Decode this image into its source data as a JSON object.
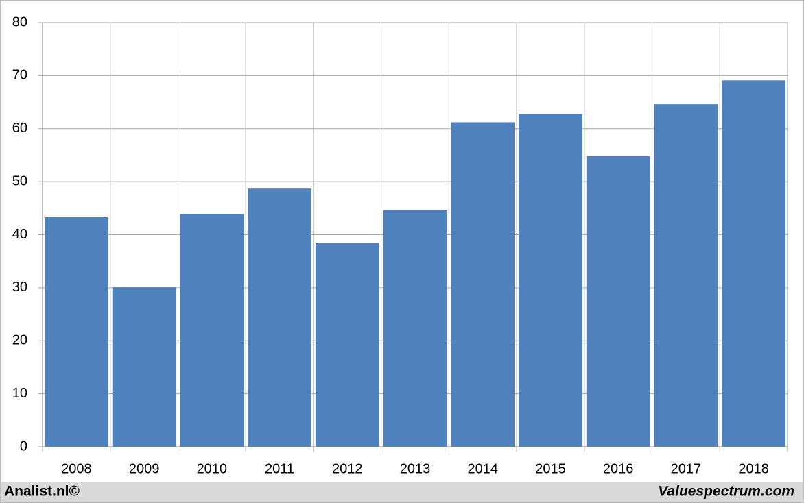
{
  "chart_data": {
    "type": "bar",
    "categories": [
      "2008",
      "2009",
      "2010",
      "2011",
      "2012",
      "2013",
      "2014",
      "2015",
      "2016",
      "2017",
      "2018"
    ],
    "values": [
      43.3,
      30.1,
      43.9,
      48.7,
      38.4,
      44.6,
      61.2,
      62.8,
      54.8,
      64.6,
      69.1
    ],
    "color": "#4f81bd",
    "ylim": [
      0,
      80
    ],
    "yticks": [
      0,
      10,
      20,
      30,
      40,
      50,
      60,
      70,
      80
    ],
    "grid": true,
    "footer_left": "Analist.nl©",
    "footer_right": "Valuespectrum.com"
  }
}
